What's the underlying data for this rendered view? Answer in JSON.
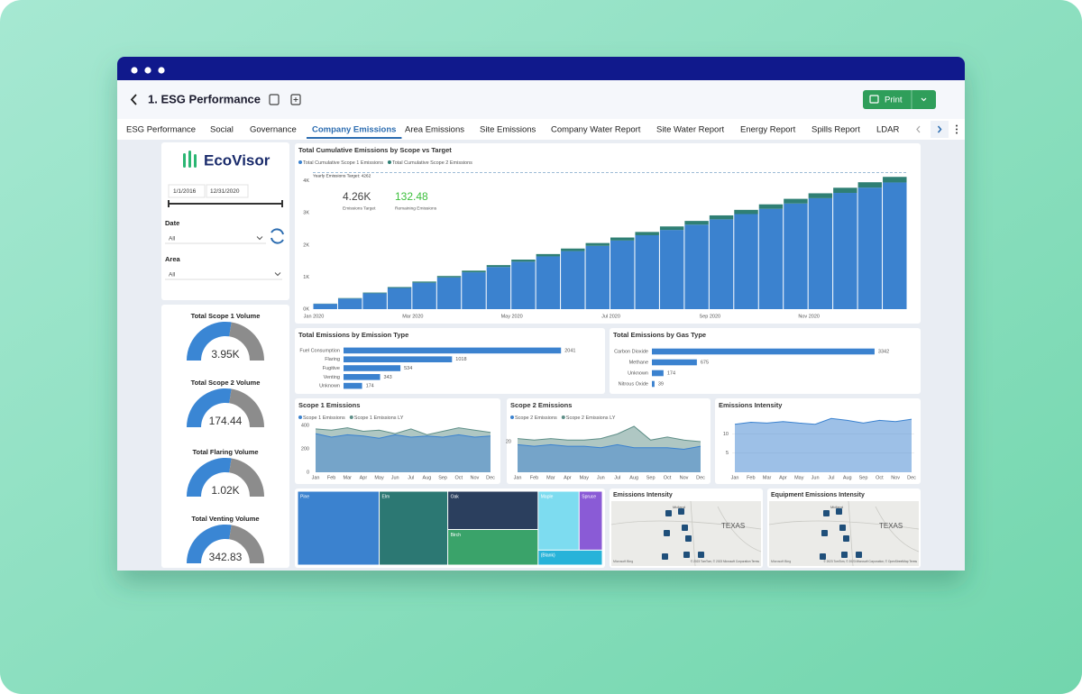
{
  "header": {
    "title": "1. ESG Performance",
    "print": "Print"
  },
  "tabs": [
    "ESG Performance",
    "Social",
    "Governance",
    "Company Emissions",
    "Area Emissions",
    "Site Emissions",
    "Company Water Report",
    "Site Water Report",
    "Energy Report",
    "Spills Report",
    "LDAR"
  ],
  "active_tab": "Company Emissions",
  "filters": {
    "brand": "EcoVisor",
    "start_date": "1/1/2016",
    "end_date": "12/31/2020",
    "date_label": "Date",
    "date_value": "All",
    "area_label": "Area",
    "area_value": "All"
  },
  "gauges": [
    {
      "title": "Total Scope 1 Volume",
      "value": "3.95K"
    },
    {
      "title": "Total Scope 2 Volume",
      "value": "174.44"
    },
    {
      "title": "Total Flaring Volume",
      "value": "1.02K"
    },
    {
      "title": "Total Venting Volume",
      "value": "342.83"
    }
  ],
  "chart_data": [
    {
      "type": "stacked_bar",
      "title": "Total Cumulative Emissions by Scope vs Target",
      "categories": [
        "Jan 2020",
        null,
        null,
        null,
        "Mar 2020",
        null,
        null,
        null,
        "May 2020",
        null,
        null,
        null,
        "Jul 2020",
        null,
        null,
        null,
        "Sep 2020",
        null,
        null,
        null,
        "Nov 2020",
        null,
        null,
        null
      ],
      "series": [
        {
          "name": "Total Cumulative Scope 1 Emissions",
          "color": "#3b82cf",
          "values": [
            165,
            330,
            495,
            660,
            825,
            990,
            1150,
            1315,
            1480,
            1645,
            1810,
            1975,
            2140,
            2305,
            2470,
            2635,
            2800,
            2965,
            3130,
            3295,
            3460,
            3625,
            3790,
            3950
          ]
        },
        {
          "name": "Total Cumulative Scope 2 Emissions",
          "color": "#2f7f74",
          "values": [
            7,
            15,
            22,
            29,
            36,
            44,
            51,
            58,
            65,
            73,
            80,
            87,
            94,
            102,
            109,
            116,
            124,
            131,
            138,
            145,
            153,
            160,
            167,
            174
          ]
        }
      ],
      "target": 4262,
      "target_label": "Yearly Emissions Target: 4262",
      "kpis": [
        {
          "value": "4.26K",
          "label": "Emissions Target",
          "color": "#444444"
        },
        {
          "value": "132.48",
          "label": "Remaining Emissions",
          "color": "#3cbf3c"
        }
      ],
      "ylim": [
        0,
        4300
      ],
      "yticks": [
        {
          "value": 0,
          "label": "0K"
        },
        {
          "value": 1000,
          "label": "1K"
        },
        {
          "value": 2000,
          "label": "2K"
        },
        {
          "value": 3000,
          "label": "3K"
        },
        {
          "value": 4000,
          "label": "4K"
        }
      ]
    },
    {
      "type": "hbar",
      "title": "Total Emissions by Emission Type",
      "categories": [
        "Fuel Consumption",
        "Flaring",
        "Fugitive",
        "Venting",
        "Unknown"
      ],
      "values": [
        2041,
        1018,
        534,
        343,
        174
      ],
      "color": "#3b82cf",
      "xlim": [
        0,
        2200
      ]
    },
    {
      "type": "hbar",
      "title": "Total Emissions by Gas Type",
      "categories": [
        "Carbon Dioxide",
        "Methane",
        "Unknown",
        "Nitrous Oxide"
      ],
      "values": [
        3342,
        675,
        174,
        39
      ],
      "color": "#3b82cf",
      "xlim": [
        0,
        3600
      ]
    },
    {
      "type": "area",
      "title": "Scope 1 Emissions",
      "categories": [
        "Jan",
        "Feb",
        "Mar",
        "Apr",
        "May",
        "Jun",
        "Jul",
        "Aug",
        "Sep",
        "Oct",
        "Nov",
        "Dec"
      ],
      "series": [
        {
          "name": "Scope 1 Emissions",
          "color": "#3b82cf",
          "values": [
            330,
            300,
            320,
            310,
            290,
            320,
            300,
            310,
            300,
            320,
            300,
            310
          ]
        },
        {
          "name": "Scope 1 Emissions LY",
          "color": "#5f8f88",
          "values": [
            370,
            360,
            380,
            350,
            360,
            330,
            370,
            320,
            350,
            380,
            360,
            340
          ]
        }
      ],
      "ylim": [
        0,
        400
      ],
      "yticks": [
        0,
        200,
        400
      ]
    },
    {
      "type": "area",
      "title": "Scope 2 Emissions",
      "categories": [
        "Jan",
        "Feb",
        "Mar",
        "Apr",
        "May",
        "Jun",
        "Jul",
        "Aug",
        "Sep",
        "Oct",
        "Nov",
        "Dec"
      ],
      "series": [
        {
          "name": "Scope 2 Emissions",
          "color": "#3b82cf",
          "values": [
            18,
            17,
            18,
            17,
            17,
            16,
            18,
            16,
            16,
            16,
            15,
            17
          ]
        },
        {
          "name": "Scope 2 Emissions LY",
          "color": "#5f8f88",
          "values": [
            22,
            21,
            22,
            21,
            21,
            22,
            25,
            30,
            21,
            23,
            21,
            20
          ]
        }
      ],
      "ylim": [
        0,
        30
      ],
      "yticks": [
        20
      ]
    },
    {
      "type": "area",
      "title": "Emissions Intensity",
      "categories": [
        "Jan",
        "Feb",
        "Mar",
        "Apr",
        "May",
        "Jun",
        "Jul",
        "Aug",
        "Sep",
        "Oct",
        "Nov",
        "Dec"
      ],
      "values": [
        12.5,
        13.0,
        12.8,
        13.2,
        12.8,
        12.5,
        14.0,
        13.5,
        12.8,
        13.5,
        13.2,
        13.8
      ],
      "color": "#3b82cf",
      "ylim": [
        0,
        15
      ],
      "yticks": [
        5,
        10
      ],
      "grid": true
    },
    {
      "type": "treemap",
      "categories": [
        "Pine",
        "Elm",
        "Oak",
        "Birch",
        "Maple",
        "Spruce",
        "(Blank)"
      ],
      "values": [
        75,
        63,
        43,
        40,
        30,
        17,
        12
      ],
      "colors": [
        "#3b82cf",
        "#2c7873",
        "#2b3f5e",
        "#3aa36a",
        "#7ddcf0",
        "#8a5bd6",
        "#27b3d9"
      ]
    }
  ],
  "maps": [
    {
      "title": "Emissions Intensity",
      "labels": [
        "Midland",
        "TEXAS"
      ],
      "provider": "Microsoft Bing",
      "attribution": "© 2023 TomTom, © 2023 Microsoft Corporation Terms"
    },
    {
      "title": "Equipment Emissions Intensity",
      "labels": [
        "Midland",
        "TEXAS"
      ],
      "provider": "Microsoft Bing",
      "attribution": "© 2023 TomTom, © 2023 Microsoft Corporation, © OpenStreetMap Terms"
    }
  ]
}
